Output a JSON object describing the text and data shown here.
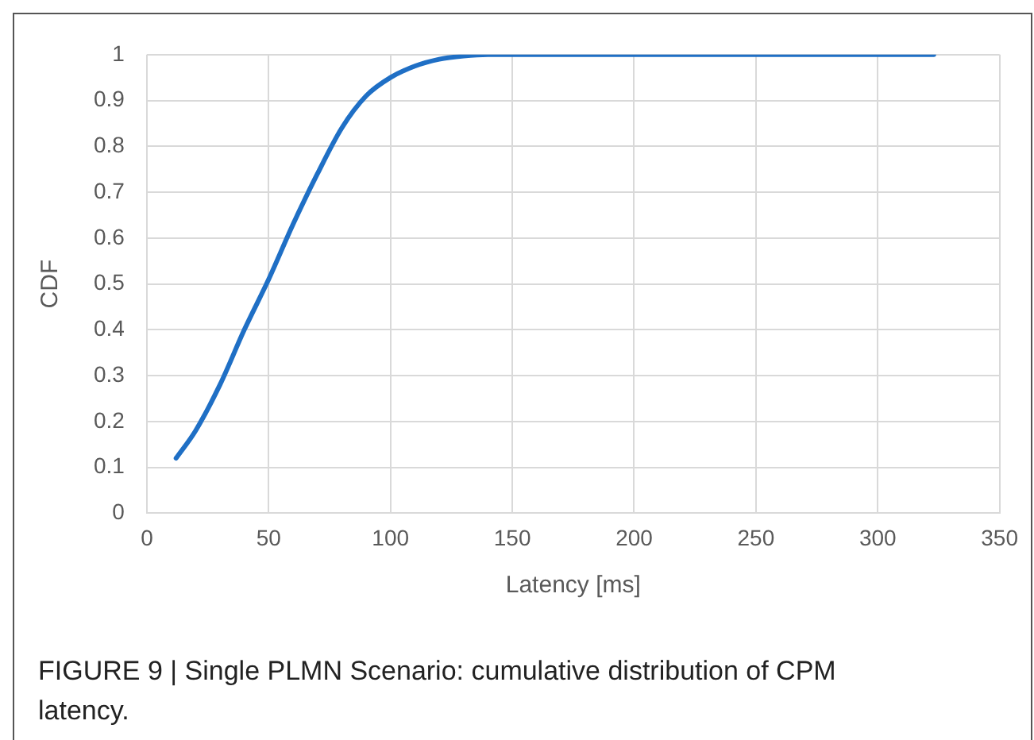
{
  "chart_data": {
    "type": "line",
    "xlabel": "Latency [ms]",
    "ylabel": "CDF",
    "annotations": [
      "FIGURE 9 | Single PLMN Scenario: cumulative distribution of CPM latency."
    ],
    "series": [
      {
        "color": "#1f6fc5",
        "x": [
          12,
          20,
          30,
          40,
          50,
          60,
          70,
          80,
          90,
          100,
          110,
          120,
          130,
          140,
          150,
          200,
          250,
          300,
          323
        ],
        "values": [
          0.12,
          0.18,
          0.28,
          0.4,
          0.51,
          0.63,
          0.74,
          0.84,
          0.91,
          0.95,
          0.975,
          0.99,
          0.997,
          1,
          1,
          1,
          1,
          1,
          1
        ]
      }
    ],
    "xlim": [
      0,
      350
    ],
    "xticks": [
      0,
      50,
      100,
      150,
      200,
      250,
      300,
      350
    ],
    "ylim": [
      0,
      1
    ],
    "yticks": [
      0,
      0.1,
      0.2,
      0.3,
      0.4,
      0.5,
      0.6,
      0.7,
      0.8,
      0.9,
      1
    ],
    "grid": true,
    "legend": false,
    "marker": "none",
    "line_style": "solid"
  }
}
